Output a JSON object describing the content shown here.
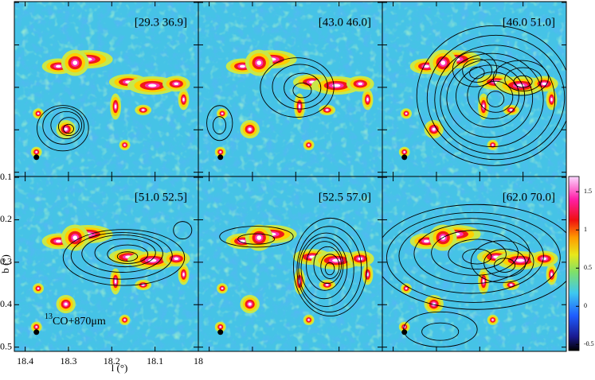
{
  "chart_data": {
    "type": "map",
    "panels": [
      "[29.3 36.9]",
      "[43.0 46.0]",
      "[46.0 51.0]",
      "[51.0 52.5]",
      "[52.5 57.0]",
      "[62.0 70.0]"
    ],
    "annotation_sup": "13",
    "annotation": "CO+870μm",
    "xlabel": "l (°)",
    "ylabel": "b (°)",
    "xlim": [
      18.425,
      18.0
    ],
    "xticks": [
      18.4,
      18.3,
      18.2,
      18.1,
      18
    ],
    "ylim": [
      -0.098,
      -0.51
    ],
    "yticks": [
      -0.1,
      -0.2,
      -0.3,
      -0.4,
      -0.5
    ],
    "colorbar": {
      "lim": [
        -0.58,
        1.7
      ],
      "ticks": [
        -0.5,
        0,
        0.5,
        1,
        1.5
      ]
    }
  }
}
